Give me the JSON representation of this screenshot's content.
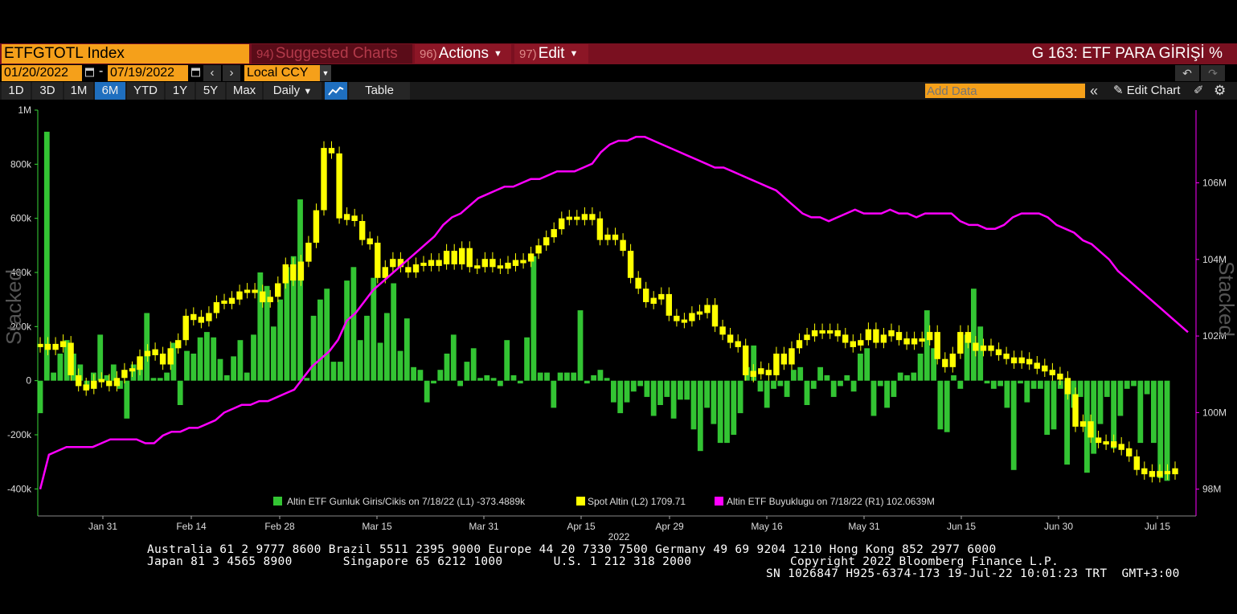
{
  "header": {
    "ticker": "ETFGTOTL Index",
    "menu": [
      {
        "num": "94)",
        "label": "Suggested Charts"
      },
      {
        "num": "96)",
        "label": "Actions"
      },
      {
        "num": "97)",
        "label": "Edit"
      }
    ],
    "chart_title": "G 163: ETF PARA GİRİŞİ %"
  },
  "toolbar": {
    "start_date": "01/20/2022",
    "separator": "-",
    "end_date": "07/19/2022",
    "prev_icon": "chevron-left-icon",
    "next_icon": "chevron-right-icon",
    "currency": "Local CCY",
    "undo_icon": "undo-icon",
    "redo_icon": "redo-icon"
  },
  "range_bar": {
    "ranges": [
      "1D",
      "3D",
      "1M",
      "6M",
      "YTD",
      "1Y",
      "5Y",
      "Max"
    ],
    "active_range": "6M",
    "frequency": "Daily",
    "table_label": "Table",
    "add_data_placeholder": "Add Data",
    "edit_chart_label": "Edit Chart"
  },
  "colors": {
    "flows": "#33c433",
    "spot": "#ffff00",
    "size": "#ff00ff",
    "header_bg": "#7a1020",
    "orange": "#f5a01a",
    "axis": "#39d939"
  },
  "chart_data": {
    "type": "bar",
    "x_start": "2022-01-20",
    "x_end": "2022-07-19",
    "x_ticks": [
      "Jan 31",
      "Feb 14",
      "Feb 28",
      "Mar 15",
      "Mar 31",
      "Apr 15",
      "Apr 29",
      "May 16",
      "May 31",
      "Jun 15",
      "Jun 30",
      "Jul 15"
    ],
    "year_label": "2022",
    "left_axis": {
      "label": "Stacked",
      "ticks": [
        "1M",
        "800k",
        "600k",
        "400k",
        "200k",
        "0",
        "-200k",
        "-400k"
      ],
      "ylim": [
        -500000,
        1000000
      ]
    },
    "right_axis": {
      "label": "Stacked",
      "ticks": [
        "106M",
        "104M",
        "102M",
        "100M",
        "98M"
      ],
      "ylim": [
        97.3,
        107.9
      ]
    },
    "legend": [
      {
        "label": "Altin ETF Gunluk Giris/Cikis on 7/18/22 (L1) -373.4889k"
      },
      {
        "label": "Spot Altin (L2) 1709.71"
      },
      {
        "label": "Altin ETF Buyuklugu on 7/18/22 (R1) 102.0639M"
      }
    ],
    "series": [
      {
        "name": "Altin ETF Gunluk Giris/Cikis",
        "axis": "L1",
        "type": "bar",
        "values": [
          -120000,
          920000,
          30000,
          100000,
          150000,
          100000,
          60000,
          -30000,
          30000,
          170000,
          20000,
          60000,
          -30000,
          -140000,
          60000,
          90000,
          250000,
          10000,
          10000,
          30000,
          140000,
          -90000,
          110000,
          100000,
          160000,
          180000,
          160000,
          80000,
          20000,
          90000,
          150000,
          30000,
          170000,
          400000,
          350000,
          200000,
          300000,
          420000,
          460000,
          670000,
          10000,
          240000,
          300000,
          340000,
          70000,
          70000,
          370000,
          420000,
          150000,
          240000,
          380000,
          140000,
          250000,
          360000,
          110000,
          230000,
          50000,
          40000,
          -80000,
          -10000,
          40000,
          100000,
          170000,
          -20000,
          70000,
          120000,
          10000,
          20000,
          10000,
          -20000,
          150000,
          20000,
          -10000,
          160000,
          460000,
          30000,
          30000,
          -100000,
          30000,
          30000,
          30000,
          260000,
          -10000,
          20000,
          40000,
          10000,
          -80000,
          -120000,
          -80000,
          -40000,
          -20000,
          -60000,
          -130000,
          -90000,
          -60000,
          -140000,
          -70000,
          -70000,
          -180000,
          -260000,
          -100000,
          -160000,
          -230000,
          -230000,
          -200000,
          -120000,
          50000,
          130000,
          -40000,
          -100000,
          -30000,
          -20000,
          -60000,
          40000,
          50000,
          -90000,
          -30000,
          50000,
          20000,
          -60000,
          -20000,
          20000,
          -40000,
          100000,
          120000,
          -130000,
          -20000,
          -100000,
          -60000,
          30000,
          20000,
          30000,
          100000,
          260000,
          120000,
          -180000,
          -190000,
          20000,
          -30000,
          170000,
          340000,
          200000,
          -10000,
          -30000,
          -20000,
          -100000,
          -330000,
          -10000,
          -80000,
          -30000,
          -30000,
          -200000,
          -180000,
          -30000,
          -310000,
          -100000,
          -60000,
          -340000,
          -270000,
          -160000,
          -60000,
          -250000,
          -130000,
          -30000,
          -20000,
          -230000,
          -50000,
          -230000,
          -360000,
          -370000
        ]
      },
      {
        "name": "Spot Altin",
        "axis": "L2",
        "type": "candlestick",
        "values": [
          130000,
          120000,
          130000,
          140000,
          20000,
          -20000,
          -30000,
          0,
          0,
          -20000,
          10000,
          40000,
          40000,
          90000,
          110000,
          100000,
          60000,
          120000,
          150000,
          240000,
          230000,
          220000,
          250000,
          290000,
          290000,
          300000,
          330000,
          330000,
          330000,
          290000,
          310000,
          360000,
          430000,
          370000,
          440000,
          510000,
          630000,
          860000,
          840000,
          600000,
          610000,
          590000,
          520000,
          510000,
          380000,
          420000,
          450000,
          420000,
          400000,
          430000,
          430000,
          440000,
          430000,
          480000,
          430000,
          490000,
          420000,
          420000,
          450000,
          420000,
          420000,
          430000,
          440000,
          440000,
          470000,
          500000,
          530000,
          560000,
          600000,
          600000,
          600000,
          610000,
          600000,
          520000,
          540000,
          520000,
          480000,
          380000,
          340000,
          290000,
          300000,
          320000,
          240000,
          220000,
          220000,
          250000,
          250000,
          280000,
          200000,
          170000,
          140000,
          130000,
          20000,
          30000,
          40000,
          20000,
          100000,
          60000,
          120000,
          150000,
          170000,
          180000,
          180000,
          180000,
          170000,
          140000,
          130000,
          150000,
          190000,
          140000,
          170000,
          180000,
          150000,
          140000,
          150000,
          150000,
          180000,
          80000,
          50000,
          100000,
          180000,
          140000,
          110000,
          130000,
          110000,
          100000,
          80000,
          70000,
          80000,
          60000,
          50000,
          40000,
          20000,
          10000,
          -50000,
          -170000,
          -150000,
          -210000,
          -230000,
          -230000,
          -240000,
          -250000,
          -280000,
          -330000,
          -340000,
          -350000,
          -340000,
          -340000,
          -330000
        ]
      },
      {
        "name": "Altin ETF Buyuklugu",
        "axis": "R1",
        "type": "line",
        "values": [
          98.0,
          98.9,
          99.0,
          99.1,
          99.1,
          99.1,
          99.1,
          99.2,
          99.3,
          99.3,
          99.3,
          99.3,
          99.2,
          99.2,
          99.4,
          99.5,
          99.5,
          99.6,
          99.6,
          99.7,
          99.8,
          100.0,
          100.1,
          100.2,
          100.2,
          100.3,
          100.3,
          100.4,
          100.5,
          100.6,
          100.9,
          101.2,
          101.4,
          101.6,
          101.9,
          102.4,
          102.6,
          102.9,
          103.2,
          103.4,
          103.6,
          103.8,
          104.0,
          104.2,
          104.4,
          104.6,
          104.9,
          105.1,
          105.2,
          105.4,
          105.6,
          105.7,
          105.8,
          105.9,
          105.9,
          106.0,
          106.1,
          106.1,
          106.2,
          106.3,
          106.3,
          106.3,
          106.4,
          106.5,
          106.8,
          107.0,
          107.1,
          107.1,
          107.2,
          107.2,
          107.1,
          107.0,
          106.9,
          106.8,
          106.7,
          106.6,
          106.5,
          106.4,
          106.4,
          106.3,
          106.2,
          106.1,
          106.0,
          105.9,
          105.8,
          105.6,
          105.4,
          105.2,
          105.1,
          105.1,
          105.0,
          105.1,
          105.2,
          105.3,
          105.2,
          105.2,
          105.2,
          105.3,
          105.2,
          105.2,
          105.1,
          105.2,
          105.2,
          105.2,
          105.2,
          105.0,
          104.9,
          104.9,
          104.8,
          104.8,
          104.9,
          105.1,
          105.2,
          105.2,
          105.2,
          105.1,
          104.9,
          104.8,
          104.7,
          104.5,
          104.4,
          104.2,
          104.0,
          103.7,
          103.5,
          103.3,
          103.1,
          102.9,
          102.7,
          102.5,
          102.3,
          102.1
        ]
      }
    ]
  },
  "footer": {
    "line1": "Australia 61 2 9777 8600 Brazil 5511 2395 9000 Europe 44 20 7330 7500 Germany 49 69 9204 1210 Hong Kong 852 2977 6000",
    "line2_left": "Japan 81 3 4565 8900       Singapore 65 6212 1000       U.S. 1 212 318 2000",
    "line2_right": "Copyright 2022 Bloomberg Finance L.P.",
    "line3": "SN 1026847 H925-6374-173 19-Jul-22 10:01:23 TRT  GMT+3:00"
  }
}
